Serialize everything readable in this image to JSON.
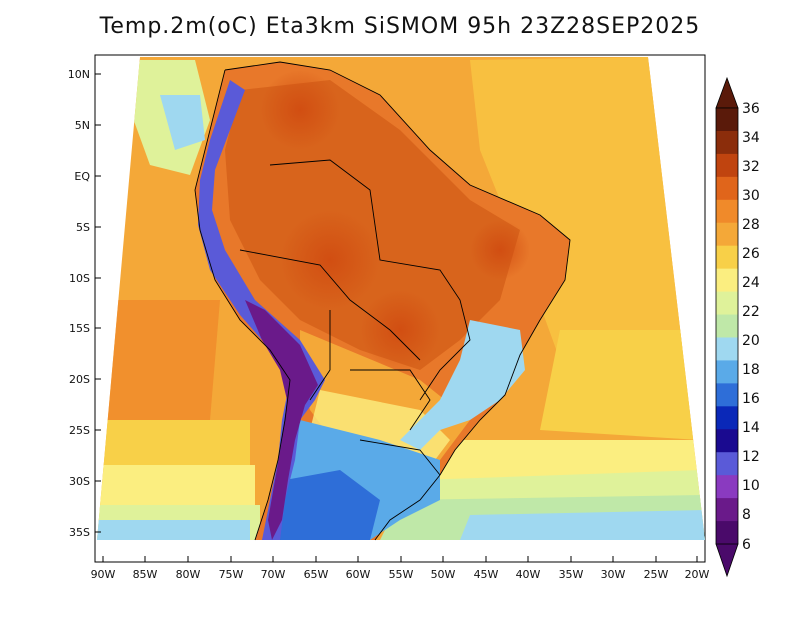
{
  "title": "Temp.2m(oC) Eta3km SiSMOM 95h 23Z28SEP2025",
  "lat_labels": [
    "10N",
    "5N",
    "EQ",
    "5S",
    "10S",
    "15S",
    "20S",
    "25S",
    "30S",
    "35S"
  ],
  "lon_labels": [
    "90W",
    "85W",
    "80W",
    "75W",
    "70W",
    "65W",
    "60W",
    "55W",
    "50W",
    "45W",
    "40W",
    "35W",
    "30W",
    "25W",
    "20W"
  ],
  "colorbar": {
    "labels": [
      "36",
      "34",
      "32",
      "30",
      "28",
      "26",
      "24",
      "22",
      "20",
      "18",
      "16",
      "14",
      "12",
      "10",
      "8",
      "6"
    ],
    "colors": [
      "#5a1a0a",
      "#8b2d0b",
      "#c0440f",
      "#e0651b",
      "#f08a2a",
      "#f4a838",
      "#f8d048",
      "#fbee80",
      "#dff29a",
      "#bfe8a8",
      "#9fd8f0",
      "#5aaae8",
      "#2e6ed8",
      "#0a28b8",
      "#1a0a90",
      "#5a5ad8",
      "#8a3ac0",
      "#6a1a8a",
      "#4a0a6a"
    ],
    "top_arrow": "#5a1a0a",
    "bottom_arrow": "#4a0a6a"
  }
}
